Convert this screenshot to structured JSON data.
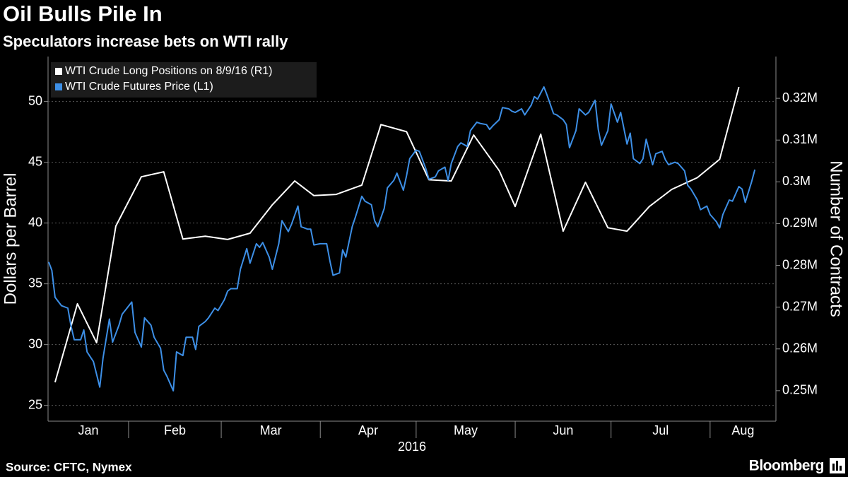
{
  "chart_data": {
    "type": "line",
    "title": "Oil Bulls Pile In",
    "subtitle": "Speculators increase bets on WTI rally",
    "ylabel": "Dollars per Barrel",
    "y2label": "Number of Contracts",
    "xlabel": "2016",
    "source": "Source: CFTC, Nymex",
    "credit": "Bloomberg",
    "legend": "upper left",
    "grid": true,
    "xlim": [
      6.8,
      234.6
    ],
    "xticks": [
      {
        "value": 1,
        "label": "Jan"
      },
      {
        "value": 32,
        "label": "Feb"
      },
      {
        "value": 61,
        "label": "Mar"
      },
      {
        "value": 92,
        "label": "Apr"
      },
      {
        "value": 122,
        "label": "May"
      },
      {
        "value": 153,
        "label": "Jun"
      },
      {
        "value": 183,
        "label": "Jul"
      },
      {
        "value": 214,
        "label": "Aug"
      }
    ],
    "ylim": [
      23.7,
      53.7
    ],
    "yticks": [
      25,
      30,
      35,
      40,
      45,
      50
    ],
    "y2lim": [
      242700,
      330000
    ],
    "y2ticks": [
      {
        "value": 250000,
        "label": "0.25M"
      },
      {
        "value": 260000,
        "label": "0.26M"
      },
      {
        "value": 270000,
        "label": "0.27M"
      },
      {
        "value": 280000,
        "label": "0.28M"
      },
      {
        "value": 290000,
        "label": "0.29M"
      },
      {
        "value": 300000,
        "label": "0.3M"
      },
      {
        "value": 310000,
        "label": "0.31M"
      },
      {
        "value": 320000,
        "label": "0.32M"
      }
    ],
    "series": [
      {
        "name": "WTI Crude Long Positions on 8/9/16 (R1)",
        "color": "#ffffff",
        "axis": "y2",
        "x": [
          9,
          16,
          22,
          28,
          36,
          43,
          49,
          56,
          63,
          70,
          77,
          84,
          90,
          97,
          105,
          111,
          119,
          126,
          133,
          140,
          148,
          153,
          161,
          168,
          175,
          182,
          188,
          195,
          202,
          210,
          217,
          223
        ],
        "values": [
          252000,
          270800,
          261500,
          289400,
          301200,
          302400,
          286300,
          287000,
          286200,
          287700,
          294500,
          300200,
          296700,
          297000,
          299200,
          313700,
          312000,
          300500,
          300200,
          311200,
          302700,
          294100,
          311400,
          288200,
          299900,
          289000,
          288200,
          294100,
          298200,
          301000,
          305400,
          322700
        ]
      },
      {
        "name": "WTI Crude Futures Price (L1)",
        "color": "#3d8fe6",
        "axis": "y",
        "x": [
          7,
          8,
          9,
          11,
          13,
          14,
          15,
          17,
          18,
          19,
          21,
          23,
          24,
          26,
          27,
          29,
          30,
          33,
          34,
          36,
          37,
          39,
          40,
          42,
          43,
          44,
          46,
          47,
          49,
          50,
          52,
          53,
          54,
          56,
          57,
          59,
          60,
          62,
          63,
          64,
          66,
          67,
          69,
          70,
          72,
          73,
          74,
          76,
          77,
          79,
          80,
          82,
          83,
          85,
          86,
          88,
          89,
          90,
          92,
          94,
          95,
          96,
          98,
          99,
          100,
          102,
          103,
          105,
          106,
          108,
          109,
          110,
          112,
          113,
          115,
          116,
          118,
          119,
          120,
          122,
          123,
          125,
          126,
          128,
          129,
          131,
          132,
          133,
          135,
          136,
          138,
          139,
          141,
          142,
          144,
          145,
          146,
          148,
          149,
          151,
          152,
          153,
          155,
          156,
          158,
          159,
          160,
          162,
          163,
          165,
          166,
          168,
          169,
          170,
          172,
          173,
          175,
          176,
          178,
          179,
          180,
          182,
          183,
          185,
          186,
          188,
          189,
          190,
          192,
          193,
          194,
          196,
          197,
          199,
          200,
          201,
          203,
          204,
          206,
          207,
          208,
          210,
          211,
          213,
          214,
          216,
          217,
          218,
          220,
          221,
          223,
          224,
          225,
          227,
          228
        ],
        "values": [
          36.8,
          36.1,
          33.9,
          33.2,
          33.0,
          31.5,
          30.4,
          30.4,
          31.2,
          29.4,
          28.6,
          26.5,
          28.9,
          32.1,
          30.2,
          31.6,
          32.5,
          33.5,
          31.0,
          29.8,
          32.2,
          31.6,
          30.6,
          29.7,
          27.9,
          27.4,
          26.2,
          29.4,
          29.1,
          30.6,
          30.6,
          29.6,
          31.5,
          31.9,
          32.2,
          33.0,
          32.8,
          33.7,
          34.4,
          34.6,
          34.6,
          36.2,
          37.9,
          36.7,
          38.3,
          38.0,
          38.4,
          37.2,
          36.2,
          38.3,
          40.2,
          39.3,
          39.9,
          41.4,
          39.7,
          39.5,
          39.5,
          38.2,
          38.3,
          38.3,
          36.9,
          35.7,
          35.9,
          37.8,
          37.2,
          39.7,
          40.5,
          42.2,
          41.8,
          41.5,
          40.2,
          39.7,
          41.2,
          42.9,
          43.5,
          44.1,
          42.7,
          43.9,
          45.3,
          46.0,
          45.9,
          44.5,
          43.6,
          43.8,
          44.3,
          44.6,
          43.5,
          44.9,
          46.3,
          46.6,
          46.3,
          47.6,
          48.3,
          48.2,
          48.1,
          47.7,
          48.0,
          48.5,
          49.5,
          49.4,
          49.2,
          49.1,
          49.4,
          48.9,
          49.7,
          50.4,
          50.2,
          51.2,
          50.5,
          49.0,
          48.9,
          48.5,
          48.1,
          46.2,
          47.6,
          49.4,
          48.9,
          49.1,
          50.1,
          47.7,
          46.4,
          47.6,
          49.8,
          48.3,
          49.1,
          46.5,
          47.4,
          45.3,
          44.9,
          45.3,
          46.9,
          44.8,
          45.7,
          45.9,
          45.2,
          44.8,
          45.0,
          44.9,
          44.3,
          43.1,
          42.8,
          41.9,
          41.1,
          41.4,
          40.7,
          40.1,
          39.6,
          40.7,
          41.9,
          41.8,
          43.0,
          42.8,
          41.7,
          43.4,
          44.4
        ]
      }
    ]
  }
}
